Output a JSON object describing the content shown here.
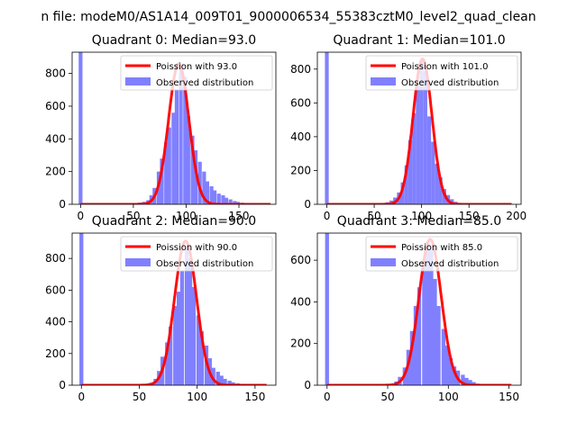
{
  "suptitle": "n file: modeM0/AS1A14_009T01_9000006534_55383cztM0_level2_quad_clean",
  "colors": {
    "poisson": "#ff0000",
    "observed": "#8080ff",
    "axis": "#000000"
  },
  "chart_data": [
    {
      "type": "bar",
      "title": "Quadrant 0: Median=93.0",
      "median": 93.0,
      "xlim": [
        -8,
        185
      ],
      "ylim": [
        0,
        930
      ],
      "xticks": [
        "0",
        "50",
        "100",
        "150"
      ],
      "xtick_values": [
        0,
        50,
        100,
        150
      ],
      "yticks": [
        "0",
        "200",
        "400",
        "600",
        "800"
      ],
      "ytick_values": [
        0,
        200,
        400,
        600,
        800
      ],
      "bin_width": 3.6,
      "zero_bin": 930,
      "observed": {
        "centers": [
          52,
          56,
          60,
          64,
          67,
          70,
          74,
          77,
          81,
          84,
          88,
          91,
          95,
          99,
          102,
          106,
          109,
          113,
          117,
          120,
          124,
          127,
          131,
          135,
          138,
          142,
          146,
          149,
          153,
          156,
          160,
          164
        ],
        "heights": [
          6,
          10,
          15,
          25,
          55,
          100,
          200,
          280,
          380,
          470,
          560,
          700,
          860,
          780,
          540,
          420,
          330,
          260,
          200,
          140,
          110,
          85,
          65,
          55,
          40,
          30,
          20,
          15,
          10,
          6,
          4,
          2
        ]
      },
      "poisson": {
        "mean": 93.0,
        "peak": 860,
        "sigma": 9.6,
        "x_range": [
          0,
          180
        ]
      },
      "legend": {
        "poisson_label": "Poission with 93.0",
        "observed_label": "Observed distribution",
        "placement": "upper right"
      }
    },
    {
      "type": "bar",
      "title": "Quadrant 1: Median=101.0",
      "median": 101.0,
      "xlim": [
        -10,
        205
      ],
      "ylim": [
        0,
        900
      ],
      "xticks": [
        "0",
        "50",
        "100",
        "150",
        "200"
      ],
      "xtick_values": [
        0,
        50,
        100,
        150,
        200
      ],
      "yticks": [
        "0",
        "200",
        "400",
        "600",
        "800"
      ],
      "ytick_values": [
        0,
        200,
        400,
        600,
        800
      ],
      "bin_width": 4,
      "zero_bin": 900,
      "observed": {
        "centers": [
          60,
          64,
          68,
          72,
          76,
          80,
          84,
          88,
          92,
          96,
          100,
          104,
          108,
          112,
          116,
          120,
          124,
          128,
          132,
          136,
          140
        ],
        "heights": [
          6,
          12,
          22,
          40,
          70,
          130,
          230,
          380,
          540,
          700,
          850,
          790,
          520,
          370,
          240,
          160,
          90,
          55,
          30,
          15,
          6
        ]
      },
      "poisson": {
        "mean": 101.0,
        "peak": 860,
        "sigma": 10.0,
        "x_range": [
          0,
          195
        ]
      },
      "legend": {
        "poisson_label": "Poission with 101.0",
        "observed_label": "Observed distribution",
        "placement": "upper right"
      }
    },
    {
      "type": "bar",
      "title": "Quadrant 2: Median=90.0",
      "median": 90.0,
      "xlim": [
        -8,
        168
      ],
      "ylim": [
        0,
        960
      ],
      "xticks": [
        "0",
        "50",
        "100",
        "150"
      ],
      "xtick_values": [
        0,
        50,
        100,
        150
      ],
      "yticks": [
        "0",
        "200",
        "400",
        "600",
        "800"
      ],
      "ytick_values": [
        0,
        200,
        400,
        600,
        800
      ],
      "bin_width": 3.4,
      "zero_bin": 960,
      "observed": {
        "centers": [
          57,
          60,
          64,
          67,
          70,
          74,
          77,
          81,
          84,
          87,
          91,
          94,
          97,
          101,
          104,
          108,
          111,
          114,
          118,
          121,
          124,
          128,
          131,
          135,
          138,
          141,
          145
        ],
        "heights": [
          6,
          15,
          40,
          90,
          180,
          270,
          370,
          500,
          590,
          720,
          860,
          800,
          620,
          440,
          340,
          250,
          170,
          110,
          85,
          60,
          40,
          28,
          18,
          12,
          8,
          5,
          3
        ]
      },
      "poisson": {
        "mean": 90.0,
        "peak": 910,
        "sigma": 9.5,
        "x_range": [
          0,
          160
        ]
      },
      "legend": {
        "poisson_label": "Poission with 90.0",
        "observed_label": "Observed distribution",
        "placement": "upper right"
      }
    },
    {
      "type": "bar",
      "title": "Quadrant 3: Median=85.0",
      "median": 85.0,
      "xlim": [
        -8,
        160
      ],
      "ylim": [
        0,
        730
      ],
      "xticks": [
        "0",
        "50",
        "100",
        "150"
      ],
      "xtick_values": [
        0,
        50,
        100,
        150
      ],
      "yticks": [
        "0",
        "200",
        "400",
        "600"
      ],
      "ytick_values": [
        0,
        200,
        400,
        600
      ],
      "bin_width": 3.2,
      "zero_bin": 730,
      "observed": {
        "centers": [
          54,
          57,
          60,
          64,
          67,
          70,
          73,
          76,
          80,
          83,
          86,
          89,
          92,
          96,
          99,
          102,
          105,
          108,
          112,
          115,
          118,
          121,
          124
        ],
        "heights": [
          6,
          18,
          40,
          85,
          170,
          260,
          380,
          470,
          580,
          690,
          650,
          510,
          380,
          270,
          190,
          130,
          90,
          70,
          50,
          35,
          25,
          15,
          8
        ]
      },
      "poisson": {
        "mean": 85.0,
        "peak": 700,
        "sigma": 9.2,
        "x_range": [
          0,
          152
        ]
      },
      "legend": {
        "poisson_label": "Poission with 85.0",
        "observed_label": "Observed distribution",
        "placement": "upper right"
      }
    }
  ]
}
